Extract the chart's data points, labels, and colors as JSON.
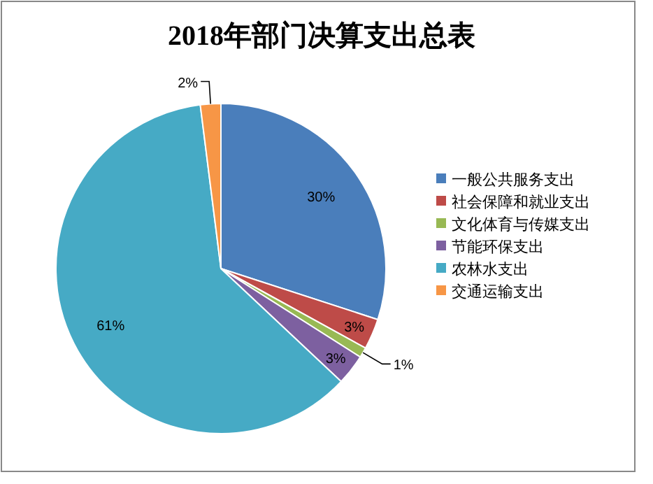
{
  "chart_data": {
    "type": "pie",
    "title": "2018年部门决算支出总表",
    "categories": [
      "一般公共服务支出",
      "社会保障和就业支出",
      "文化体育与传媒支出",
      "节能环保支出",
      "农林水支出",
      "交通运输支出"
    ],
    "values": [
      30,
      3,
      1,
      3,
      61,
      2
    ],
    "colors": [
      "#4a7ebb",
      "#be4b48",
      "#98b954",
      "#7d60a0",
      "#46aac5",
      "#f79646"
    ],
    "value_labels": [
      "30%",
      "3%",
      "1%",
      "3%",
      "61%",
      "2%"
    ],
    "legend": "right"
  }
}
